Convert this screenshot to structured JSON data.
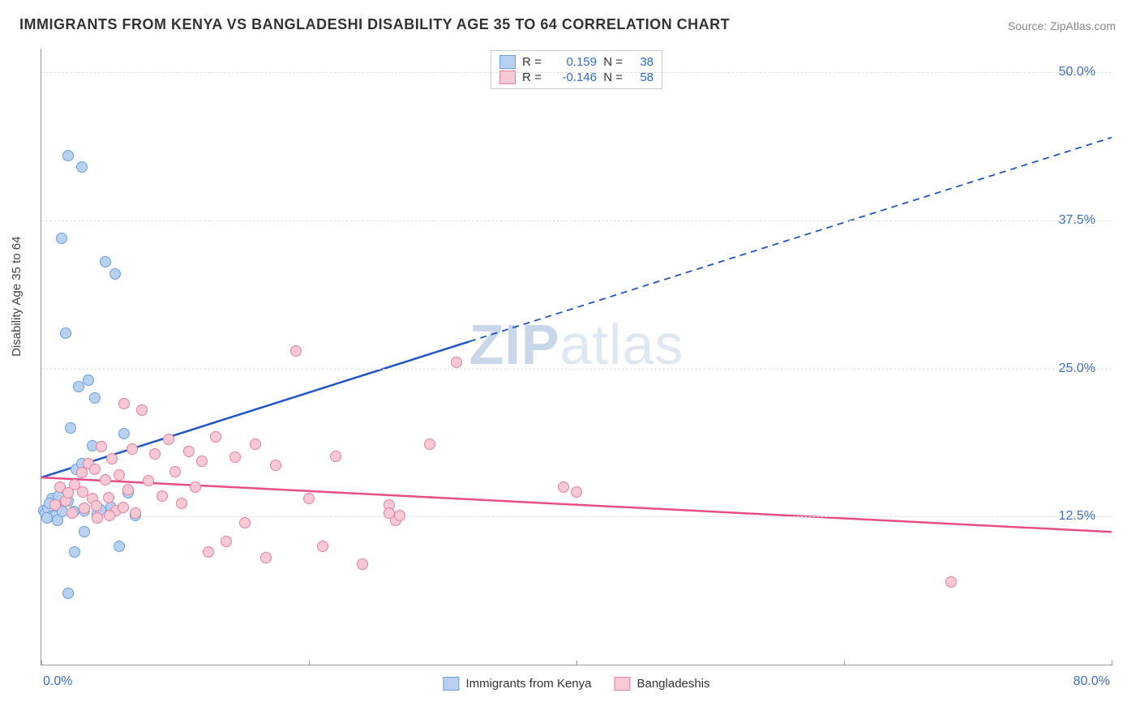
{
  "title": "IMMIGRANTS FROM KENYA VS BANGLADESHI DISABILITY AGE 35 TO 64 CORRELATION CHART",
  "source": "Source: ZipAtlas.com",
  "y_axis_title": "Disability Age 35 to 64",
  "watermark_prefix": "ZIP",
  "watermark_suffix": "atlas",
  "chart": {
    "type": "scatter",
    "xlim": [
      0,
      80
    ],
    "ylim": [
      0,
      52
    ],
    "x_ticks": [
      0,
      20,
      40,
      60,
      80
    ],
    "x_tick_labels": [
      "0.0%",
      "",
      "",
      "",
      "80.0%"
    ],
    "y_ticks": [
      12.5,
      25.0,
      37.5,
      50.0
    ],
    "y_tick_labels": [
      "12.5%",
      "25.0%",
      "37.5%",
      "50.0%"
    ],
    "grid_color": "#dddddd",
    "background_color": "#ffffff",
    "axis_color": "#999999",
    "series": [
      {
        "name": "Immigrants from Kenya",
        "fill": "#b8d1f0",
        "stroke": "#6a9fde",
        "line_color": "#1f56c7",
        "R": "0.159",
        "N": "38",
        "trend": {
          "x1": 0,
          "y1": 15.8,
          "x2": 80,
          "y2": 44.5,
          "solid_until_x": 32
        },
        "points": [
          [
            0.2,
            13.0
          ],
          [
            0.3,
            12.8
          ],
          [
            0.5,
            13.2
          ],
          [
            0.7,
            12.5
          ],
          [
            0.8,
            14.0
          ],
          [
            1.0,
            12.6
          ],
          [
            1.1,
            13.4
          ],
          [
            1.2,
            12.2
          ],
          [
            1.5,
            36.0
          ],
          [
            1.8,
            28.0
          ],
          [
            2.0,
            43.0
          ],
          [
            2.2,
            20.0
          ],
          [
            2.4,
            12.9
          ],
          [
            2.6,
            16.5
          ],
          [
            2.8,
            23.5
          ],
          [
            3.0,
            42.0
          ],
          [
            3.2,
            11.2
          ],
          [
            3.5,
            24.0
          ],
          [
            3.8,
            18.5
          ],
          [
            4.0,
            22.5
          ],
          [
            4.2,
            12.7
          ],
          [
            4.4,
            13.1
          ],
          [
            4.8,
            34.0
          ],
          [
            5.2,
            13.3
          ],
          [
            5.5,
            33.0
          ],
          [
            5.8,
            10.0
          ],
          [
            6.2,
            19.5
          ],
          [
            6.5,
            14.5
          ],
          [
            7.0,
            12.6
          ],
          [
            2.0,
            6.0
          ],
          [
            2.5,
            9.5
          ],
          [
            2.0,
            13.8
          ],
          [
            3.0,
            17.0
          ],
          [
            3.2,
            13.0
          ],
          [
            0.4,
            12.4
          ],
          [
            0.6,
            13.6
          ],
          [
            1.3,
            14.2
          ],
          [
            1.6,
            12.9
          ]
        ]
      },
      {
        "name": "Bangladeshis",
        "fill": "#f6c9d5",
        "stroke": "#e77f9e",
        "line_color": "#e94d85",
        "R": "-0.146",
        "N": "58",
        "trend": {
          "x1": 0,
          "y1": 15.8,
          "x2": 80,
          "y2": 11.2,
          "solid_until_x": 80
        },
        "points": [
          [
            1.0,
            13.5
          ],
          [
            1.4,
            15.0
          ],
          [
            1.8,
            13.8
          ],
          [
            2.0,
            14.5
          ],
          [
            2.5,
            15.2
          ],
          [
            3.0,
            16.2
          ],
          [
            3.2,
            13.2
          ],
          [
            3.5,
            17.0
          ],
          [
            3.8,
            14.0
          ],
          [
            4.0,
            16.5
          ],
          [
            4.2,
            12.4
          ],
          [
            4.5,
            18.4
          ],
          [
            4.8,
            15.6
          ],
          [
            5.0,
            14.1
          ],
          [
            5.3,
            17.4
          ],
          [
            5.6,
            13.0
          ],
          [
            5.8,
            16.0
          ],
          [
            6.2,
            22.0
          ],
          [
            6.5,
            14.8
          ],
          [
            6.8,
            18.2
          ],
          [
            7.0,
            12.8
          ],
          [
            7.5,
            21.5
          ],
          [
            8.0,
            15.5
          ],
          [
            8.5,
            17.8
          ],
          [
            9.0,
            14.2
          ],
          [
            9.5,
            19.0
          ],
          [
            10.0,
            16.3
          ],
          [
            10.5,
            13.6
          ],
          [
            11.0,
            18.0
          ],
          [
            11.5,
            15.0
          ],
          [
            12.0,
            17.2
          ],
          [
            12.5,
            9.5
          ],
          [
            13.0,
            19.2
          ],
          [
            13.8,
            10.4
          ],
          [
            14.5,
            17.5
          ],
          [
            15.2,
            12.0
          ],
          [
            16.0,
            18.6
          ],
          [
            16.8,
            9.0
          ],
          [
            17.5,
            16.8
          ],
          [
            19.0,
            26.5
          ],
          [
            20.0,
            14.0
          ],
          [
            21.0,
            10.0
          ],
          [
            22.0,
            17.6
          ],
          [
            24.0,
            8.5
          ],
          [
            26.0,
            13.5
          ],
          [
            29.0,
            18.6
          ],
          [
            31.0,
            25.5
          ],
          [
            39.0,
            15.0
          ],
          [
            40.0,
            14.6
          ],
          [
            2.3,
            12.8
          ],
          [
            3.1,
            14.6
          ],
          [
            4.1,
            13.4
          ],
          [
            5.1,
            12.6
          ],
          [
            6.1,
            13.3
          ],
          [
            26.5,
            12.2
          ],
          [
            26.8,
            12.6
          ],
          [
            68.0,
            7.0
          ],
          [
            26.0,
            12.8
          ]
        ]
      }
    ],
    "legend_series": [
      {
        "label": "Immigrants from Kenya"
      },
      {
        "label": "Bangladeshis"
      }
    ]
  }
}
